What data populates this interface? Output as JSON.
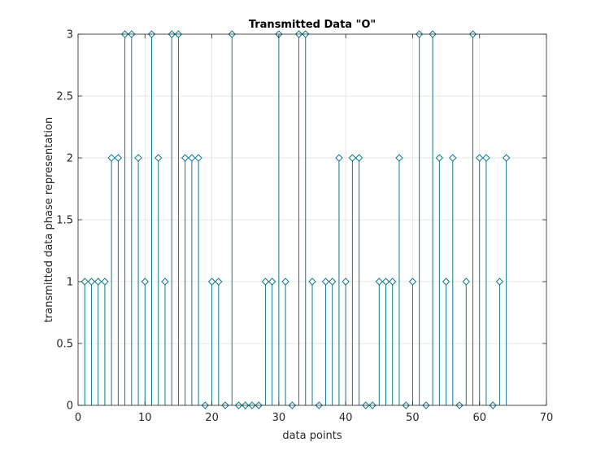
{
  "chart_data": {
    "type": "stem",
    "title": "Transmitted Data \"O\"",
    "xlabel": "data points",
    "ylabel": "transmitted data phase representation",
    "xlim": [
      0,
      70
    ],
    "ylim": [
      0,
      3
    ],
    "xticks": [
      0,
      10,
      20,
      30,
      40,
      50,
      60,
      70
    ],
    "yticks": [
      0,
      0.5,
      1,
      1.5,
      2,
      2.5,
      3
    ],
    "xtick_labels": [
      "0",
      "10",
      "20",
      "30",
      "40",
      "50",
      "60",
      "70"
    ],
    "ytick_labels": [
      "0",
      "0.5",
      "1",
      "1.5",
      "2",
      "2.5",
      "3"
    ],
    "grid": true,
    "marker": "diamond",
    "color": "#0e7a8c",
    "x": [
      1,
      2,
      3,
      4,
      5,
      6,
      7,
      8,
      9,
      10,
      11,
      12,
      13,
      14,
      15,
      16,
      17,
      18,
      19,
      20,
      21,
      22,
      23,
      24,
      25,
      26,
      27,
      28,
      29,
      30,
      31,
      32,
      33,
      34,
      35,
      36,
      37,
      38,
      39,
      40,
      41,
      42,
      43,
      44,
      45,
      46,
      47,
      48,
      49,
      50,
      51,
      52,
      53,
      54,
      55,
      56,
      57,
      58,
      59,
      60,
      61,
      62,
      63,
      64
    ],
    "y": [
      1,
      1,
      1,
      1,
      2,
      2,
      3,
      3,
      2,
      1,
      3,
      2,
      1,
      3,
      3,
      2,
      2,
      2,
      0,
      1,
      1,
      0,
      3,
      0,
      0,
      0,
      0,
      1,
      1,
      3,
      1,
      0,
      3,
      3,
      1,
      0,
      1,
      1,
      2,
      1,
      2,
      2,
      0,
      0,
      1,
      1,
      1,
      2,
      0,
      1,
      3,
      0,
      3,
      2,
      1,
      2,
      0,
      1,
      3,
      2,
      2,
      0,
      1,
      2
    ]
  }
}
